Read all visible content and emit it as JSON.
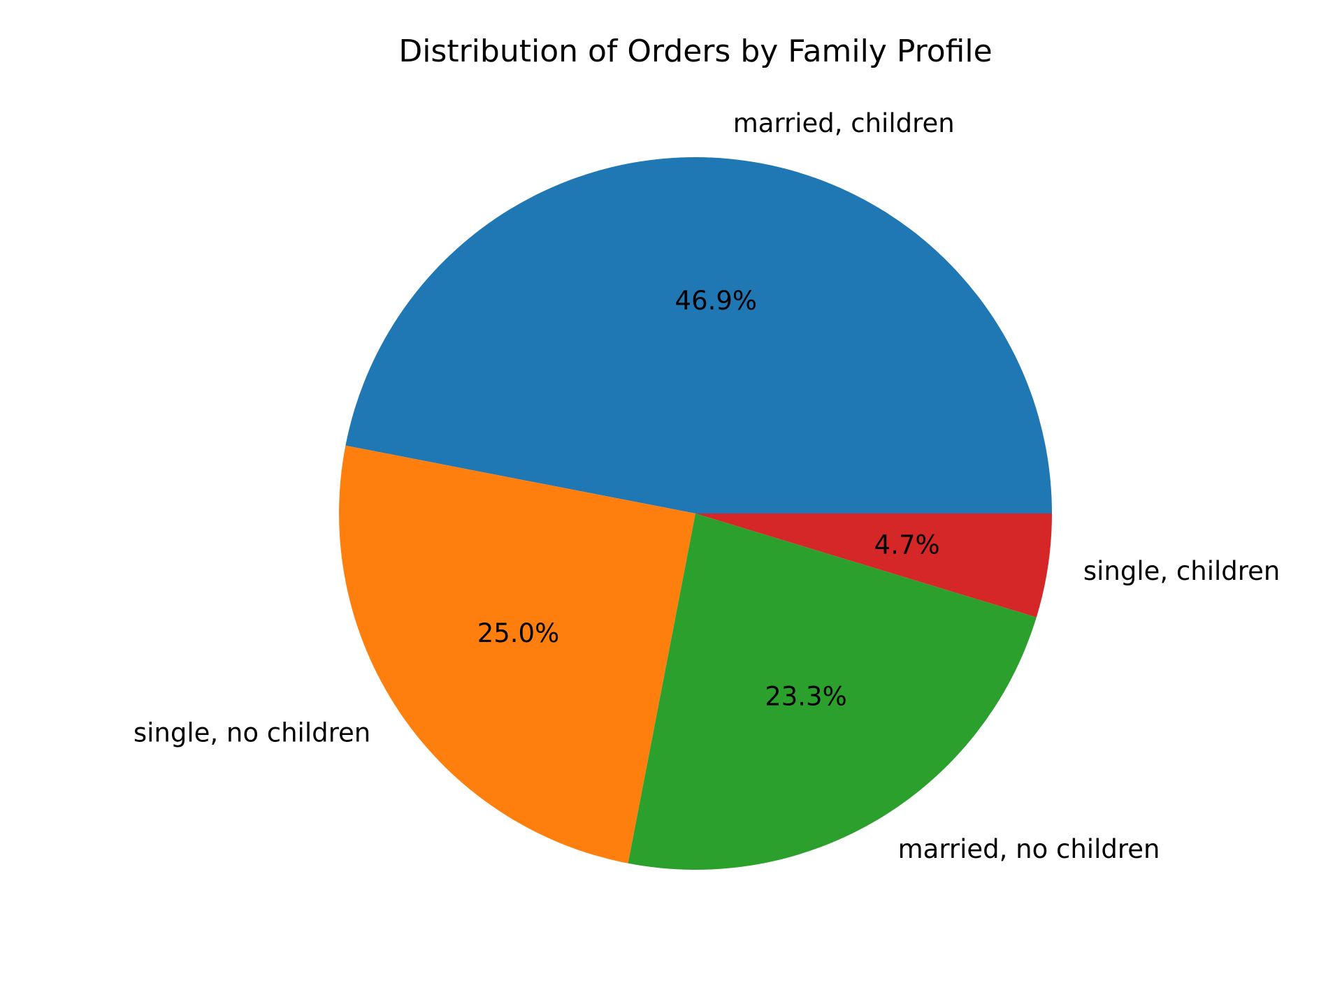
{
  "chart_data": {
    "type": "pie",
    "title": "Distribution of Orders by Family Profile",
    "categories": [
      "married, children",
      "single, no children",
      "married, no children",
      "single, children"
    ],
    "values": [
      46.9,
      25.0,
      23.3,
      4.7
    ],
    "value_labels": [
      "46.9%",
      "25.0%",
      "23.3%",
      "4.7%"
    ],
    "colors": [
      "#1f77b4",
      "#ff7f0e",
      "#2ca02c",
      "#d62728"
    ],
    "start_angle": "0° (3 o'clock), counter-clockwise",
    "legend": "none"
  }
}
